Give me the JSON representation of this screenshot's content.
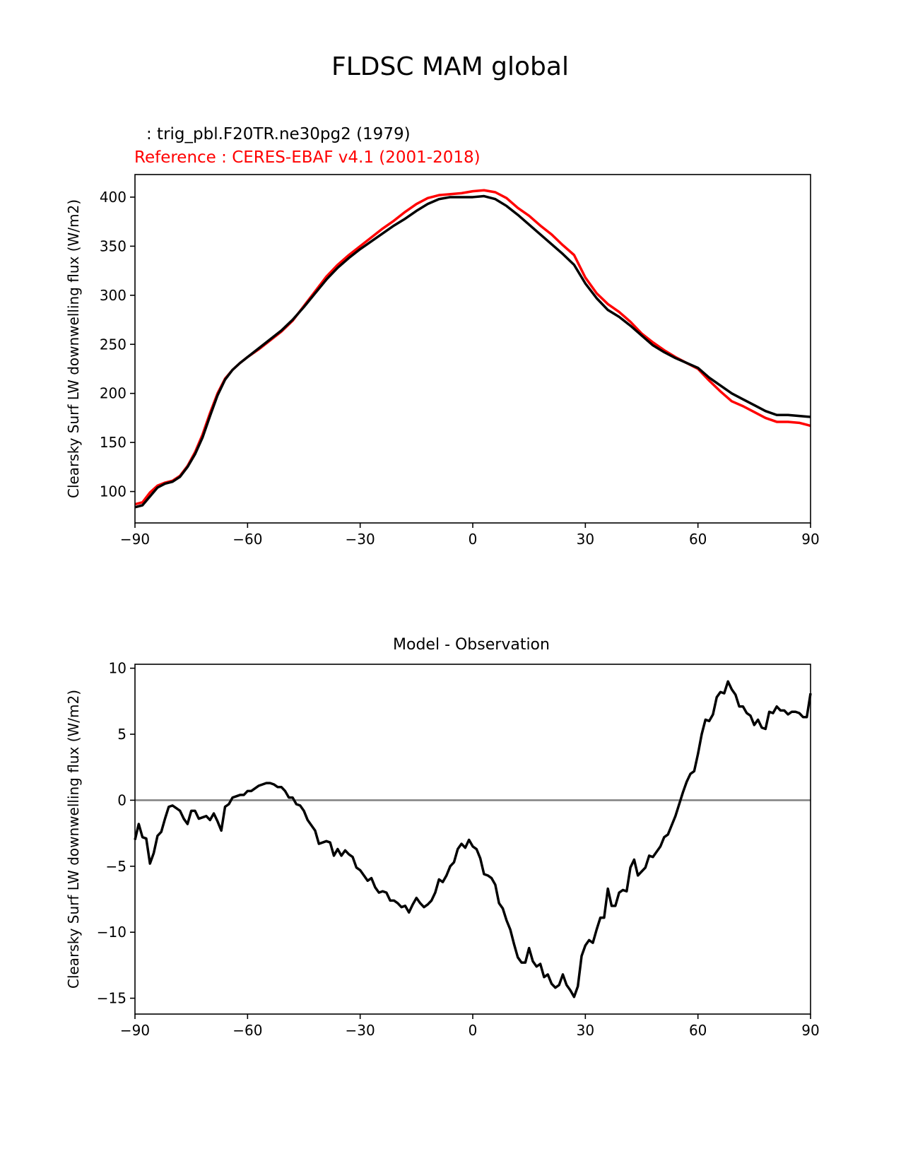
{
  "figure": {
    "title": "FLDSC MAM global",
    "test_label": ": trig_pbl.F20TR.ne30pg2 (1979)",
    "reference_label": "Reference : CERES-EBAF v4.1 (2001-2018)"
  },
  "colors": {
    "test": "#000000",
    "reference": "#ff0000",
    "zero_line": "#808080"
  },
  "chart_data": [
    {
      "type": "line",
      "title": "",
      "ylabel": "Clearsky Surf LW downwelling flux (W/m2)",
      "xlabel": "",
      "xlim": [
        -90,
        90
      ],
      "ylim": [
        68,
        423
      ],
      "xticks": [
        -90,
        -60,
        -30,
        0,
        30,
        60,
        90
      ],
      "xtick_labels": [
        "−90",
        "−60",
        "−30",
        "0",
        "30",
        "60",
        "90"
      ],
      "yticks": [
        100,
        150,
        200,
        250,
        300,
        350,
        400
      ],
      "ytick_labels": [
        "100",
        "150",
        "200",
        "250",
        "300",
        "350",
        "400"
      ],
      "x": [
        -90,
        -88,
        -86,
        -84,
        -82,
        -80,
        -78,
        -76,
        -74,
        -72,
        -70,
        -68,
        -66,
        -64,
        -62,
        -60,
        -57,
        -54,
        -51,
        -48,
        -45,
        -42,
        -39,
        -36,
        -33,
        -30,
        -27,
        -24,
        -21,
        -18,
        -15,
        -12,
        -9,
        -6,
        -3,
        0,
        3,
        6,
        9,
        12,
        15,
        18,
        21,
        24,
        27,
        30,
        33,
        36,
        39,
        42,
        45,
        48,
        51,
        54,
        57,
        60,
        63,
        66,
        69,
        72,
        75,
        78,
        81,
        84,
        87,
        90
      ],
      "series": [
        {
          "values": [
            84,
            86,
            95,
            104,
            108,
            110,
            115,
            125,
            138,
            155,
            177,
            198,
            214,
            224,
            231,
            237,
            246,
            255,
            264,
            275,
            288,
            302,
            316,
            328,
            338,
            347,
            355,
            363,
            371,
            378,
            386,
            393,
            398,
            400,
            400,
            400,
            401,
            398,
            391,
            382,
            372,
            362,
            352,
            342,
            331,
            312,
            297,
            285,
            278,
            269,
            259,
            249,
            242,
            236,
            231,
            226,
            216,
            208,
            200,
            194,
            188,
            182,
            178,
            178,
            177,
            176
          ]
        },
        {
          "values": [
            87,
            89,
            99,
            106,
            109,
            111,
            116,
            126,
            140,
            158,
            180,
            200,
            215,
            224,
            231,
            237,
            245,
            254,
            263,
            274,
            289,
            304,
            319,
            331,
            341,
            350,
            359,
            368,
            376,
            385,
            393,
            399,
            402,
            403,
            404,
            406,
            407,
            405,
            399,
            389,
            381,
            371,
            362,
            351,
            341,
            318,
            302,
            291,
            283,
            273,
            261,
            252,
            244,
            237,
            231,
            225,
            213,
            202,
            192,
            187,
            181,
            175,
            171,
            171,
            170,
            167
          ]
        }
      ]
    },
    {
      "type": "line",
      "title": "Model - Observation",
      "ylabel": "Clearsky Surf LW downwelling flux (W/m2)",
      "xlabel": "",
      "xlim": [
        -90,
        90
      ],
      "ylim": [
        -16.2,
        10.3
      ],
      "xticks": [
        -90,
        -60,
        -30,
        0,
        30,
        60,
        90
      ],
      "xtick_labels": [
        "−90",
        "−60",
        "−30",
        "0",
        "30",
        "60",
        "90"
      ],
      "yticks": [
        -15,
        -10,
        -5,
        0,
        5,
        10
      ],
      "ytick_labels": [
        "−15",
        "−10",
        "−5",
        "0",
        "5",
        "10"
      ],
      "hline": 0,
      "x": [
        -90,
        -89,
        -88,
        -87,
        -86,
        -85,
        -84,
        -83,
        -82,
        -81,
        -80,
        -79,
        -78,
        -77,
        -76,
        -75,
        -74,
        -73,
        -72,
        -71,
        -70,
        -69,
        -68,
        -67,
        -66,
        -65,
        -64,
        -63,
        -62,
        -61,
        -60,
        -59,
        -58,
        -57,
        -56,
        -55,
        -54,
        -53,
        -52,
        -51,
        -50,
        -49,
        -48,
        -47,
        -46,
        -45,
        -44,
        -43,
        -42,
        -41,
        -40,
        -39,
        -38,
        -37,
        -36,
        -35,
        -34,
        -33,
        -32,
        -31,
        -30,
        -29,
        -28,
        -27,
        -26,
        -25,
        -24,
        -23,
        -22,
        -21,
        -20,
        -19,
        -18,
        -17,
        -16,
        -15,
        -14,
        -13,
        -12,
        -11,
        -10,
        -9,
        -8,
        -7,
        -6,
        -5,
        -4,
        -3,
        -2,
        -1,
        0,
        1,
        2,
        3,
        4,
        5,
        6,
        7,
        8,
        9,
        10,
        11,
        12,
        13,
        14,
        15,
        16,
        17,
        18,
        19,
        20,
        21,
        22,
        23,
        24,
        25,
        26,
        27,
        28,
        29,
        30,
        31,
        32,
        33,
        34,
        35,
        36,
        37,
        38,
        39,
        40,
        41,
        42,
        43,
        44,
        45,
        46,
        47,
        48,
        49,
        50,
        51,
        52,
        53,
        54,
        55,
        56,
        57,
        58,
        59,
        60,
        61,
        62,
        63,
        64,
        65,
        66,
        67,
        68,
        69,
        70,
        71,
        72,
        73,
        74,
        75,
        76,
        77,
        78,
        79,
        80,
        81,
        82,
        83,
        84,
        85,
        86,
        87,
        88,
        89,
        90
      ],
      "series": [
        {
          "values": [
            -3.0,
            -1.8,
            -2.8,
            -2.9,
            -4.8,
            -4.0,
            -2.7,
            -2.4,
            -1.4,
            -0.5,
            -0.4,
            -0.6,
            -0.8,
            -1.4,
            -1.8,
            -0.8,
            -0.8,
            -1.4,
            -1.3,
            -1.2,
            -1.5,
            -1.0,
            -1.6,
            -2.3,
            -0.5,
            -0.3,
            0.2,
            0.3,
            0.4,
            0.4,
            0.7,
            0.7,
            0.9,
            1.1,
            1.2,
            1.3,
            1.3,
            1.2,
            1.0,
            1.0,
            0.7,
            0.2,
            0.2,
            -0.3,
            -0.4,
            -0.8,
            -1.5,
            -1.9,
            -2.3,
            -3.3,
            -3.2,
            -3.1,
            -3.2,
            -4.2,
            -3.7,
            -4.2,
            -3.8,
            -4.1,
            -4.3,
            -5.1,
            -5.3,
            -5.7,
            -6.1,
            -5.9,
            -6.6,
            -7.0,
            -6.9,
            -7.0,
            -7.6,
            -7.6,
            -7.8,
            -8.1,
            -8.0,
            -8.5,
            -7.9,
            -7.4,
            -7.8,
            -8.1,
            -7.9,
            -7.6,
            -7.0,
            -6.0,
            -6.2,
            -5.7,
            -5.0,
            -4.7,
            -3.7,
            -3.3,
            -3.6,
            -3.0,
            -3.5,
            -3.7,
            -4.4,
            -5.6,
            -5.7,
            -5.9,
            -6.4,
            -7.8,
            -8.2,
            -9.1,
            -9.8,
            -10.9,
            -11.9,
            -12.3,
            -12.3,
            -11.2,
            -12.2,
            -12.6,
            -12.4,
            -13.4,
            -13.2,
            -13.9,
            -14.2,
            -14.0,
            -13.2,
            -14.0,
            -14.4,
            -14.9,
            -14.1,
            -11.8,
            -11.0,
            -10.6,
            -10.8,
            -9.8,
            -8.9,
            -8.9,
            -6.7,
            -8.0,
            -8.0,
            -7.0,
            -6.8,
            -6.9,
            -5.1,
            -4.5,
            -5.7,
            -5.4,
            -5.1,
            -4.2,
            -4.3,
            -3.9,
            -3.5,
            -2.8,
            -2.6,
            -1.9,
            -1.2,
            -0.3,
            0.6,
            1.4,
            2.0,
            2.2,
            3.5,
            5.0,
            6.1,
            6.0,
            6.5,
            7.8,
            8.2,
            8.1,
            9.0,
            8.4,
            8.0,
            7.1,
            7.1,
            6.6,
            6.4,
            5.7,
            6.1,
            5.5,
            5.4,
            6.7,
            6.6,
            7.1,
            6.8,
            6.8,
            6.5,
            6.7,
            6.7,
            6.6,
            6.3,
            6.3,
            8.1
          ]
        }
      ]
    }
  ]
}
